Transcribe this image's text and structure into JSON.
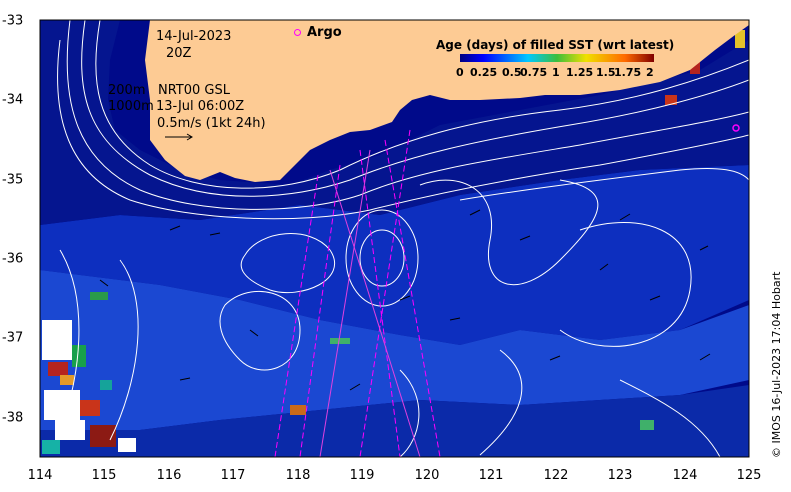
{
  "map": {
    "date": "14-Jul-2023",
    "time": "20Z",
    "argo_label": "Argo",
    "contour_200": "200m",
    "contour_1000": "1000m",
    "gsl_label": "NRT00 GSL",
    "gsl_time": "13-Jul 06:00Z",
    "scale_label": "0.5m/s (1kt 24h)",
    "credit": "© IMOS 16-Jul-2023 17:04 Hobart",
    "colorbar_title": "Age (days) of filled SST (wrt latest)",
    "colorbar_ticks": [
      "0",
      "0.25",
      "0.5",
      "0.75",
      "1",
      "1.25",
      "1.5",
      "1.75",
      "2"
    ],
    "x_ticks": [
      "114",
      "115",
      "116",
      "117",
      "118",
      "119",
      "120",
      "121",
      "122",
      "123",
      "124",
      "125"
    ],
    "y_ticks": [
      "-33",
      "-34",
      "-35",
      "-36",
      "-37",
      "-38"
    ],
    "colors": {
      "land": "#fdcb94",
      "ocean_deep": "#000a8a",
      "ocean_mid": "#0a2fc4",
      "ocean_light": "#1d4ad6",
      "argo": "#ff00ff"
    }
  }
}
